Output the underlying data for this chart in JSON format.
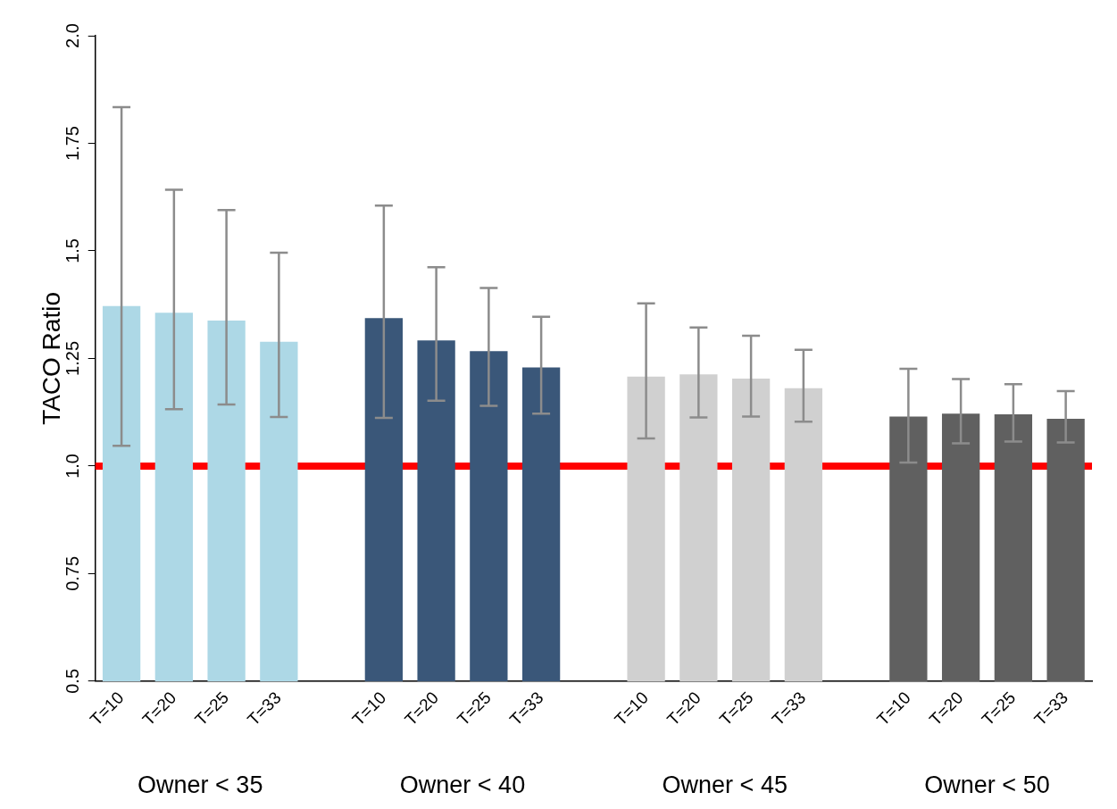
{
  "chart_data": {
    "type": "bar",
    "ylabel": "TACO Ratio",
    "categories": [
      "T=10",
      "T=20",
      "T=25",
      "T=33",
      null,
      "T=10",
      "T=20",
      "T=25",
      "T=33",
      null,
      "T=10",
      "T=20",
      "T=25",
      "T=33",
      null,
      "T=10",
      "T=20",
      "T=25",
      "T=33"
    ],
    "series": [
      {
        "name": "Owner < 35",
        "color": "#add8e6",
        "values": [
          1.372,
          1.356,
          1.338,
          1.289,
          null,
          null,
          null,
          null,
          null,
          null,
          null,
          null,
          null,
          null,
          null,
          null,
          null,
          null,
          null
        ],
        "errors": [
          [
            1.047,
            1.834
          ],
          [
            1.132,
            1.642
          ],
          [
            1.143,
            1.595
          ],
          [
            1.114,
            1.496
          ],
          null,
          null,
          null,
          null,
          null,
          null,
          null,
          null,
          null,
          null,
          null,
          null,
          null,
          null,
          null
        ]
      },
      {
        "name": "Owner < 40",
        "color": "#3a5779",
        "values": [
          null,
          null,
          null,
          null,
          null,
          1.344,
          1.292,
          1.267,
          1.229,
          null,
          null,
          null,
          null,
          null,
          null,
          null,
          null,
          null,
          null
        ],
        "errors": [
          null,
          null,
          null,
          null,
          null,
          [
            1.112,
            1.605
          ],
          [
            1.152,
            1.462
          ],
          [
            1.14,
            1.414
          ],
          [
            1.122,
            1.347
          ],
          null,
          null,
          null,
          null,
          null,
          null,
          null,
          null,
          null,
          null
        ]
      },
      {
        "name": "Owner < 45",
        "color": "#d0d0d0",
        "values": [
          null,
          null,
          null,
          null,
          null,
          null,
          null,
          null,
          null,
          null,
          1.208,
          1.213,
          1.203,
          1.181,
          null,
          null,
          null,
          null,
          null
        ],
        "errors": [
          null,
          null,
          null,
          null,
          null,
          null,
          null,
          null,
          null,
          null,
          [
            1.064,
            1.378
          ],
          [
            1.113,
            1.322
          ],
          [
            1.115,
            1.303
          ],
          [
            1.103,
            1.27
          ],
          null,
          null,
          null,
          null,
          null
        ]
      },
      {
        "name": "Owner < 50",
        "color": "#606060",
        "values": [
          null,
          null,
          null,
          null,
          null,
          null,
          null,
          null,
          null,
          null,
          null,
          null,
          null,
          null,
          null,
          1.115,
          1.122,
          1.12,
          1.11
        ],
        "errors": [
          null,
          null,
          null,
          null,
          null,
          null,
          null,
          null,
          null,
          null,
          null,
          null,
          null,
          null,
          null,
          [
            1.008,
            1.226
          ],
          [
            1.053,
            1.202
          ],
          [
            1.057,
            1.19
          ],
          [
            1.055,
            1.174
          ]
        ]
      }
    ],
    "ylim": [
      0.5,
      2.0
    ],
    "yticks": [
      {
        "value": 0.5,
        "label": "0.5"
      },
      0.75,
      {
        "value": 1.0,
        "label": "1.0"
      },
      1.25,
      {
        "value": 1.5,
        "label": "1.5"
      },
      1.75,
      {
        "value": 2.0,
        "label": "2.0"
      }
    ],
    "ref_lines": [
      {
        "axis": "y",
        "value": 1.0,
        "color": "#ff0000"
      }
    ],
    "grid": false,
    "legend": false
  }
}
